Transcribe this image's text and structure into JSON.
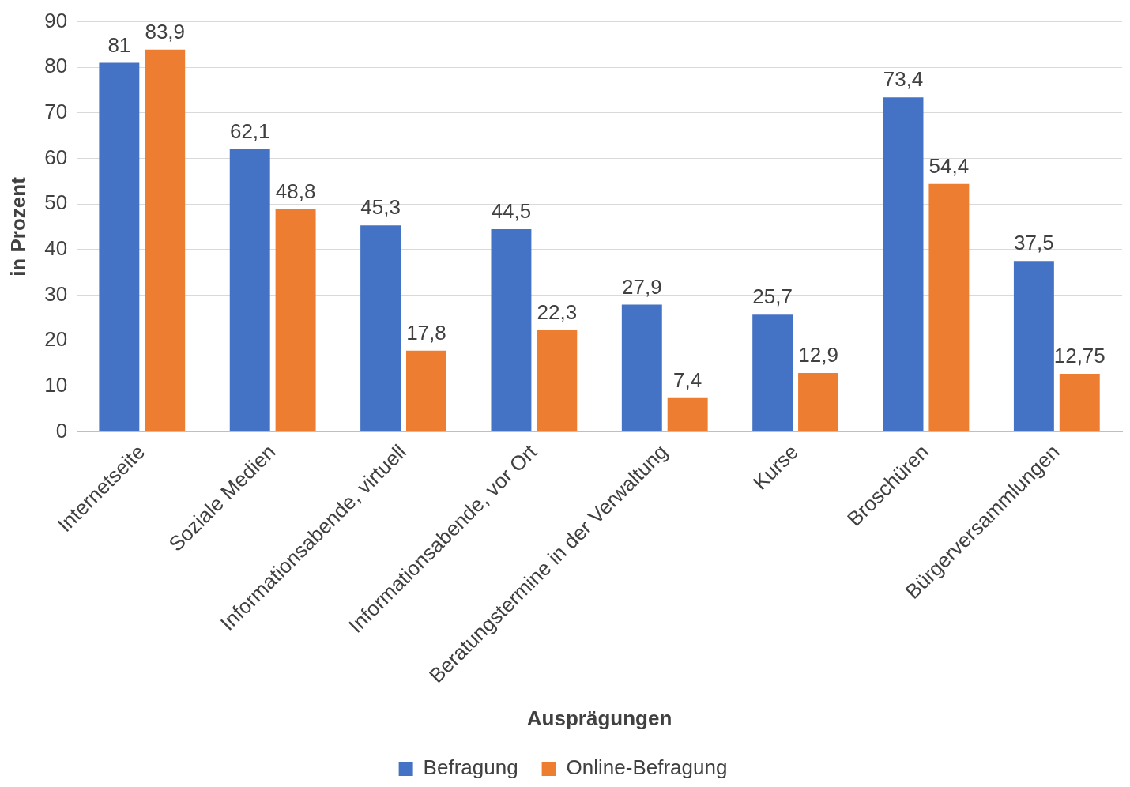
{
  "chart_data": {
    "type": "bar",
    "xlabel": "Ausprägungen",
    "ylabel": "in Prozent",
    "categories": [
      "Internetseite",
      "Soziale Medien",
      "Informationsabende, virtuell",
      "Informationsabende, vor Ort",
      "Beratungstermine in der Verwaltung",
      "Kurse",
      "Broschüren",
      "Bürgerversammlungen"
    ],
    "series": [
      {
        "name": "Befragung",
        "color": "#4472c4",
        "values": [
          81,
          62.1,
          45.3,
          44.5,
          27.9,
          25.7,
          73.4,
          37.5
        ],
        "value_labels": [
          "81",
          "62,1",
          "45,3",
          "44,5",
          "27,9",
          "25,7",
          "73,4",
          "37,5"
        ]
      },
      {
        "name": "Online-Befragung",
        "color": "#ed7d31",
        "values": [
          83.9,
          48.8,
          17.8,
          22.3,
          7.4,
          12.9,
          54.4,
          12.75
        ],
        "value_labels": [
          "83,9",
          "48,8",
          "17,8",
          "22,3",
          "7,4",
          "12,9",
          "54,4",
          "12,75"
        ]
      }
    ],
    "ylim": [
      0,
      90
    ],
    "yticks": [
      0,
      10,
      20,
      30,
      40,
      50,
      60,
      70,
      80,
      90
    ],
    "grid": "y",
    "legend": "bottom"
  }
}
